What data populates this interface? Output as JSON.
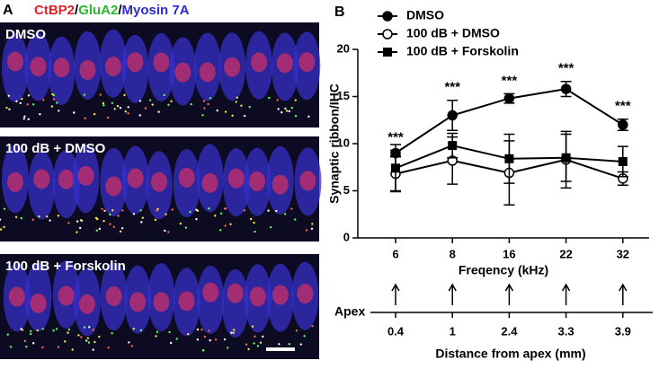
{
  "panel_a": {
    "label": "A",
    "title": [
      {
        "text": "CtBP2",
        "color": "#e0202a"
      },
      {
        "text": "/",
        "color": "#000000"
      },
      {
        "text": "GluA2",
        "color": "#2fb52f"
      },
      {
        "text": "/",
        "color": "#000000"
      },
      {
        "text": "Myosin 7A",
        "color": "#2a2ad8"
      }
    ],
    "images": [
      {
        "label": "DMSO"
      },
      {
        "label": "100 dB + DMSO"
      },
      {
        "label": "100 dB + Forskolin"
      }
    ]
  },
  "chart_data": {
    "type": "line",
    "panel_label": "B",
    "categories": [
      "6",
      "8",
      "16",
      "22",
      "32"
    ],
    "x_label": "Freqency (kHz)",
    "y_label": "Synaptic ribbon/IHC",
    "ylim": [
      0,
      20
    ],
    "yticks": [
      0,
      5,
      10,
      15,
      20
    ],
    "series": [
      {
        "name": "DMSO",
        "color": "#000000",
        "marker": "circle",
        "values": [
          9.0,
          13.0,
          14.8,
          15.8,
          12.0
        ],
        "errors": [
          0.3,
          1.6,
          0.5,
          0.8,
          0.6
        ]
      },
      {
        "name": "100 dB + DMSO",
        "color": "#000000",
        "marker": "open-circle",
        "values": [
          6.8,
          8.2,
          6.9,
          8.3,
          6.3
        ],
        "errors": [
          1.8,
          2.5,
          3.4,
          3.0,
          0.7
        ]
      },
      {
        "name": "100 dB + Forskolin",
        "color": "#000000",
        "marker": "square",
        "values": [
          7.4,
          9.8,
          8.4,
          8.5,
          8.1
        ],
        "errors": [
          2.5,
          1.3,
          2.6,
          2.5,
          1.6
        ]
      }
    ],
    "annotations": [
      "***",
      "***",
      "***",
      "***",
      "***"
    ],
    "apex_label": "Apex",
    "distance_labels": [
      "0.4",
      "1",
      "2.4",
      "3.3",
      "3.9"
    ],
    "distance_title": "Distance from apex (mm)"
  }
}
